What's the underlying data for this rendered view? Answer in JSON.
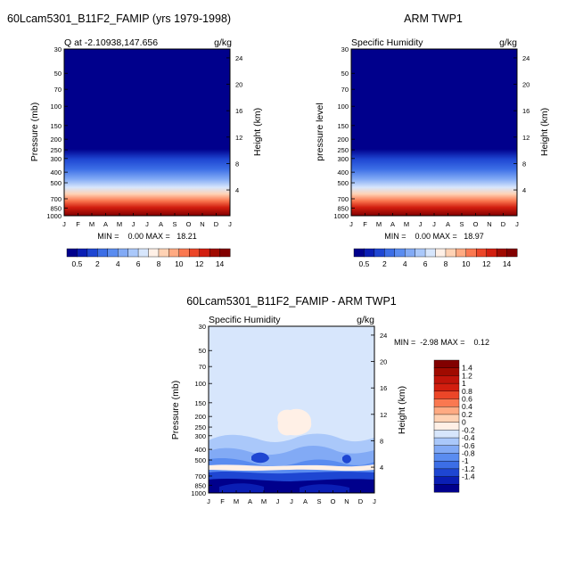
{
  "colors": {
    "scale_a": [
      "#00008c",
      "#0a1eb4",
      "#1e46d2",
      "#3c6ee6",
      "#5a8cf0",
      "#82aaf5",
      "#aac8fa",
      "#d7e6fc",
      "#fff0e6",
      "#ffd2b4",
      "#ffaa82",
      "#fa7850",
      "#ec4628",
      "#d21e0f",
      "#a00a00",
      "#820000"
    ],
    "scale_b": [
      "#00008c",
      "#0a1eb4",
      "#1e46d2",
      "#3c6ee6",
      "#5a8cf0",
      "#82aaf5",
      "#aac8fa",
      "#d7e6fc",
      "#fff0e6",
      "#ffd2b4",
      "#ffaa82",
      "#fa7850",
      "#ec4628",
      "#d21e0f",
      "#a00a00",
      "#820000"
    ]
  },
  "chart_data": [
    {
      "type": "heatmap",
      "title": "60Lcam5301_B11F2_FAMIP (yrs 1979-1998)",
      "subtitle_left": "Q at -2.10938,147.656",
      "units": "g/kg",
      "ylabel": "Pressure (mb)",
      "ylabel_right": "Height (km)",
      "x_ticks": [
        "J",
        "F",
        "M",
        "A",
        "M",
        "J",
        "J",
        "A",
        "S",
        "O",
        "N",
        "D",
        "J"
      ],
      "y_ticks": [
        "30",
        "50",
        "70",
        "100",
        "150",
        "200",
        "250",
        "300",
        "400",
        "500",
        "700",
        "850",
        "1000"
      ],
      "y_ticks_right": [
        "24",
        "20",
        "16",
        "12",
        "8",
        "4"
      ],
      "min_max": "MIN =    0.00 MAX =   18.21",
      "colorbar_labels": [
        "0.5",
        "2",
        "4",
        "6",
        "8",
        "10",
        "12",
        "14"
      ],
      "min": 0.0,
      "max": 18.21
    },
    {
      "type": "heatmap",
      "title": "ARM TWP1",
      "subtitle_left": "Specific Humidity",
      "units": "g/kg",
      "ylabel": "pressure level",
      "ylabel_right": "Height (km)",
      "x_ticks": [
        "J",
        "F",
        "M",
        "A",
        "M",
        "J",
        "J",
        "A",
        "S",
        "O",
        "N",
        "D",
        "J"
      ],
      "y_ticks": [
        "30",
        "50",
        "70",
        "100",
        "150",
        "200",
        "250",
        "300",
        "400",
        "500",
        "700",
        "850",
        "1000"
      ],
      "y_ticks_right": [
        "24",
        "20",
        "16",
        "12",
        "8",
        "4"
      ],
      "min_max": "MIN =    0.00 MAX =   18.97",
      "colorbar_labels": [
        "0.5",
        "2",
        "4",
        "6",
        "8",
        "10",
        "12",
        "14"
      ],
      "min": 0.0,
      "max": 18.97
    },
    {
      "type": "heatmap",
      "title": "60Lcam5301_B11F2_FAMIP - ARM TWP1",
      "subtitle_left": "Specific Humidity",
      "units": "g/kg",
      "ylabel": "Pressure (mb)",
      "ylabel_right": "Height (km)",
      "x_ticks": [
        "J",
        "F",
        "M",
        "A",
        "M",
        "J",
        "J",
        "A",
        "S",
        "O",
        "N",
        "D",
        "J"
      ],
      "y_ticks": [
        "30",
        "50",
        "70",
        "100",
        "150",
        "200",
        "250",
        "300",
        "400",
        "500",
        "700",
        "850",
        "1000"
      ],
      "y_ticks_right": [
        "24",
        "20",
        "16",
        "12",
        "8",
        "4"
      ],
      "min_max": "MIN =  -2.98 MAX =    0.12",
      "colorbar_labels": [
        "1.4",
        "1.2",
        "1",
        "0.8",
        "0.6",
        "0.4",
        "0.2",
        "0",
        "-0.2",
        "-0.4",
        "-0.6",
        "-0.8",
        "-1",
        "-1.2",
        "-1.4"
      ],
      "min": -2.98,
      "max": 0.12
    }
  ]
}
